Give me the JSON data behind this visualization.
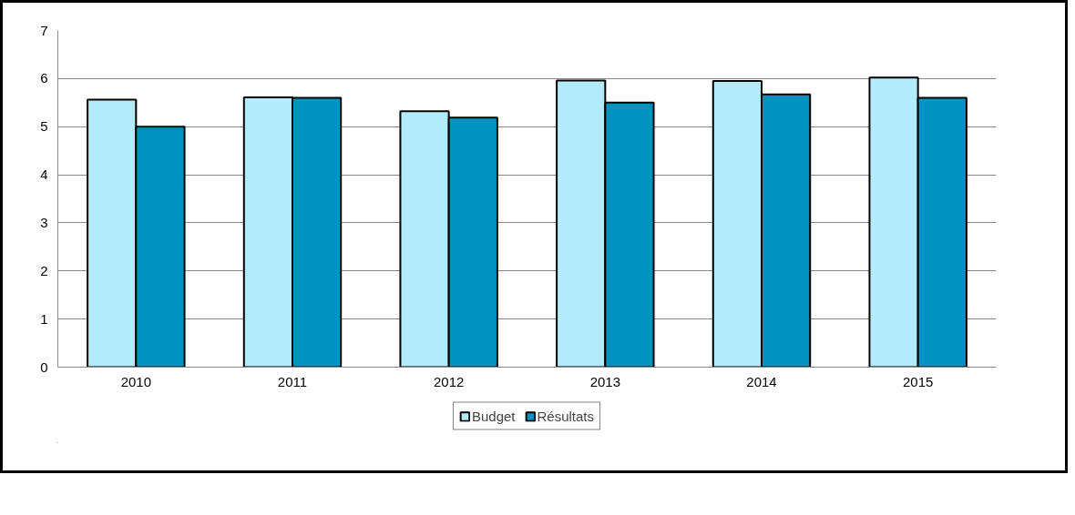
{
  "chart_data": {
    "type": "bar",
    "categories": [
      "2010",
      "2011",
      "2012",
      "2013",
      "2014",
      "2015"
    ],
    "series": [
      {
        "name": "Budget",
        "color": "#b3ebfa",
        "values": [
          5.56,
          5.61,
          5.32,
          5.96,
          5.95,
          6.02
        ]
      },
      {
        "name": "Résultats",
        "color": "#0093c0",
        "values": [
          5.0,
          5.6,
          5.19,
          5.5,
          5.67,
          5.6
        ]
      }
    ],
    "ylim": [
      0,
      7
    ],
    "yticks": [
      0,
      1,
      2,
      3,
      4,
      5,
      6,
      7
    ],
    "grid": "y",
    "legend": "bottom"
  }
}
